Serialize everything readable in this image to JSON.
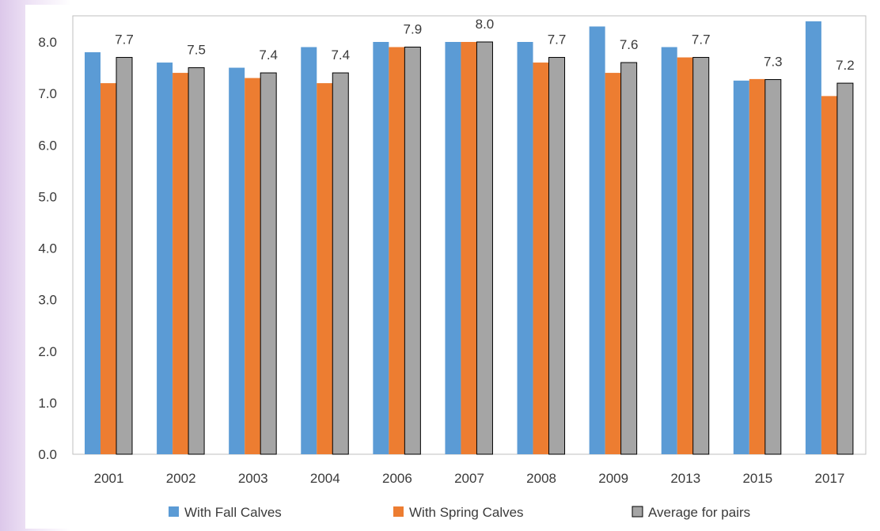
{
  "chart_data": {
    "type": "bar",
    "title": "",
    "xlabel": "",
    "ylabel": "",
    "ylim": [
      0,
      8.0
    ],
    "y_ticks": [
      "0.0",
      "1.0",
      "2.0",
      "3.0",
      "4.0",
      "5.0",
      "6.0",
      "7.0",
      "8.0"
    ],
    "grid": false,
    "legend_position": "bottom",
    "categories": [
      "2001",
      "2002",
      "2003",
      "2004",
      "2006",
      "2007",
      "2008",
      "2009",
      "2013",
      "2015",
      "2017"
    ],
    "series": [
      {
        "name": "With Fall Calves",
        "color": "#5b9bd5",
        "values": [
          7.8,
          7.6,
          7.5,
          7.9,
          8.0,
          8.0,
          8.0,
          8.3,
          7.9,
          7.25,
          8.4
        ]
      },
      {
        "name": "With Spring Calves",
        "color": "#ed7d31",
        "values": [
          7.2,
          7.4,
          7.3,
          7.2,
          7.9,
          8.0,
          7.6,
          7.4,
          7.7,
          7.28,
          6.95
        ]
      },
      {
        "name": "Average for pairs",
        "color": "#a5a5a5",
        "values": [
          7.7,
          7.5,
          7.4,
          7.4,
          7.9,
          8.0,
          7.7,
          7.6,
          7.7,
          7.27,
          7.2
        ],
        "data_labels": [
          "7.7",
          "7.5",
          "7.4",
          "7.4",
          "7.9",
          "8.0",
          "7.7",
          "7.6",
          "7.7",
          "7.3",
          "7.2"
        ]
      }
    ]
  }
}
